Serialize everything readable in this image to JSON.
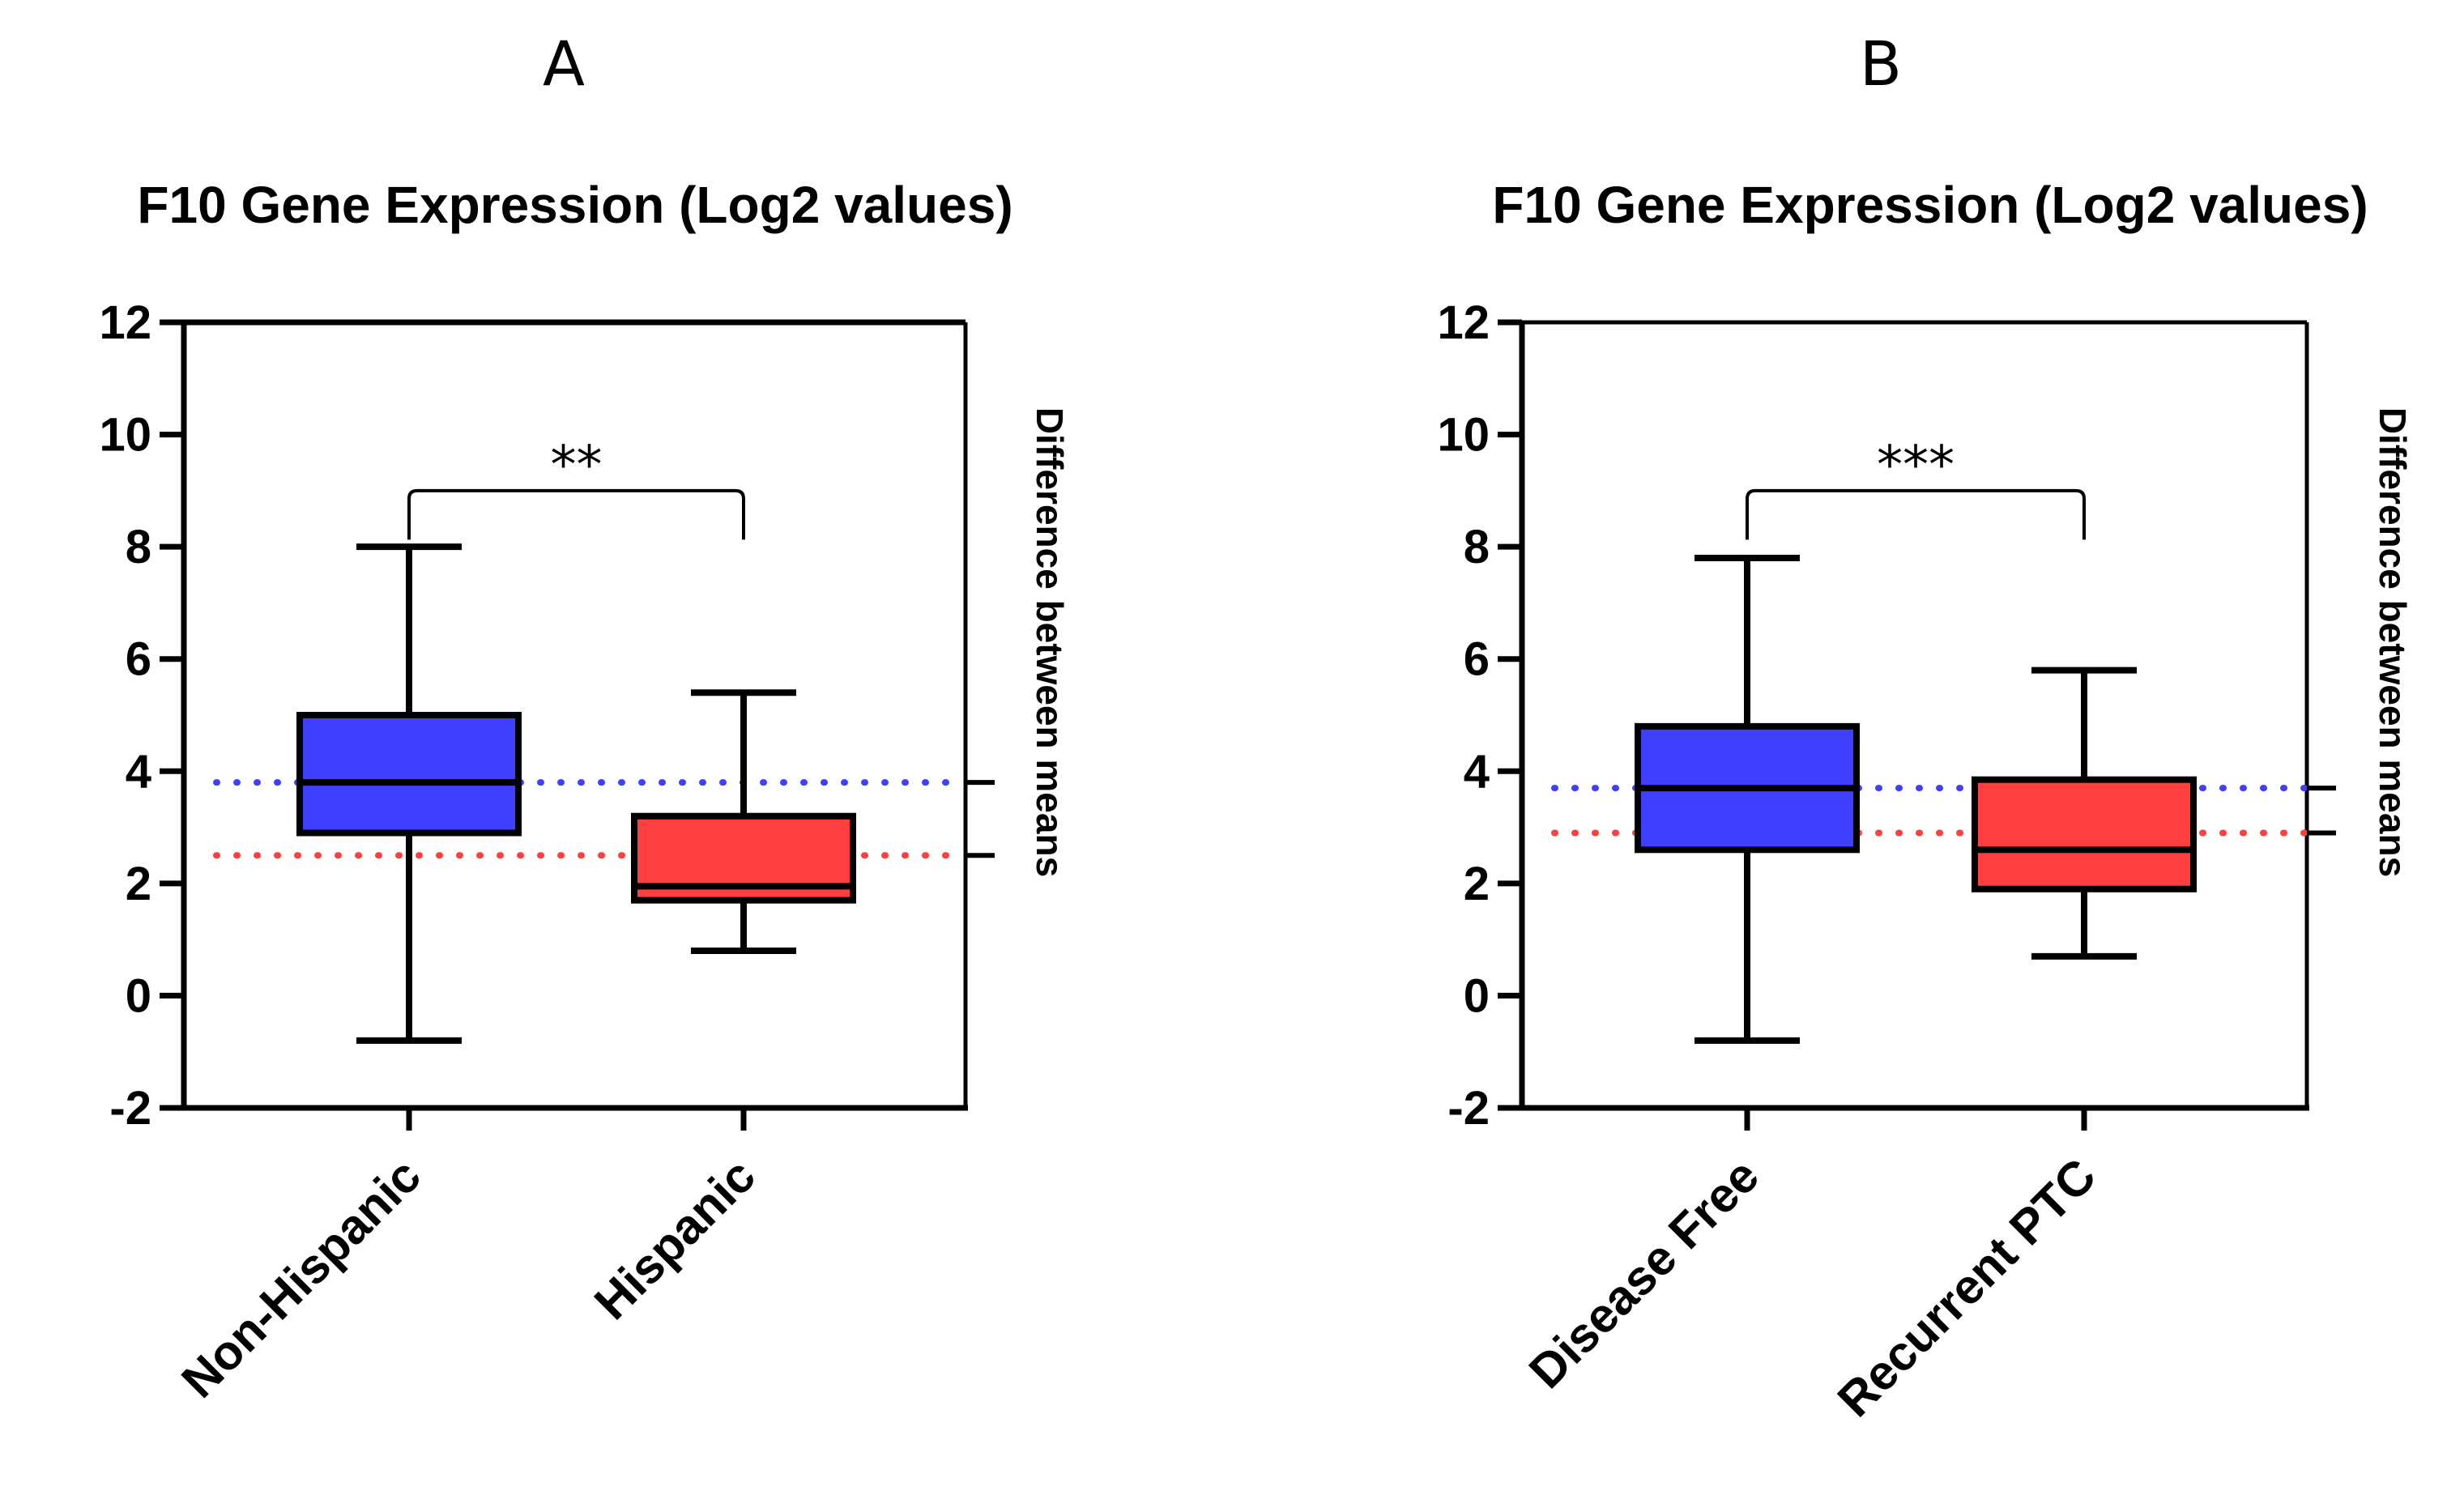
{
  "chart_data": [
    {
      "type": "boxplot",
      "panel_label": "A",
      "title": "F10 Gene Expression (Log2 values)",
      "ylabel": "",
      "right_axis_label": "Difference between means",
      "ylim": [
        -2,
        12
      ],
      "yticks": [
        -2,
        0,
        2,
        4,
        6,
        8,
        10,
        12
      ],
      "ytick_labels": [
        "-2",
        "0",
        "2",
        "4",
        "6",
        "8",
        "10",
        "12"
      ],
      "categories": [
        "Non-Hispanic",
        "Hispanic"
      ],
      "boxes": [
        {
          "name": "Non-Hispanic",
          "min": -0.8,
          "q1": 2.9,
          "median": 3.8,
          "q3": 5.0,
          "max": 8.0,
          "color": "#3f3fff"
        },
        {
          "name": "Hispanic",
          "min": 0.8,
          "q1": 1.7,
          "median": 1.95,
          "q3": 3.2,
          "max": 5.4,
          "color": "#ff3f3f"
        }
      ],
      "mean_lines": [
        {
          "group": "Non-Hispanic",
          "value": 3.8,
          "color": "#3f3fff"
        },
        {
          "group": "Hispanic",
          "value": 2.5,
          "color": "#ff3f3f"
        }
      ],
      "significance": {
        "label": "**",
        "between": [
          "Non-Hispanic",
          "Hispanic"
        ],
        "y": 9.0
      }
    },
    {
      "type": "boxplot",
      "panel_label": "B",
      "title": "F10 Gene Expression (Log2 values)",
      "ylabel": "",
      "right_axis_label": "Difference between means",
      "ylim": [
        -2,
        12
      ],
      "yticks": [
        -2,
        0,
        2,
        4,
        6,
        8,
        10,
        12
      ],
      "ytick_labels": [
        "-2",
        "0",
        "2",
        "4",
        "6",
        "8",
        "10",
        "12"
      ],
      "categories": [
        "Disease Free",
        "Recurrent PTC"
      ],
      "boxes": [
        {
          "name": "Disease Free",
          "min": -0.8,
          "q1": 2.6,
          "median": 3.7,
          "q3": 4.8,
          "max": 7.8,
          "color": "#3f3fff"
        },
        {
          "name": "Recurrent PTC",
          "min": 0.7,
          "q1": 1.9,
          "median": 2.6,
          "q3": 3.85,
          "max": 5.8,
          "color": "#ff3f3f"
        }
      ],
      "mean_lines": [
        {
          "group": "Disease Free",
          "value": 3.7,
          "color": "#3f3fff"
        },
        {
          "group": "Recurrent PTC",
          "value": 2.9,
          "color": "#ff3f3f"
        }
      ],
      "significance": {
        "label": "***",
        "between": [
          "Disease Free",
          "Recurrent PTC"
        ],
        "y": 9.0
      }
    }
  ]
}
